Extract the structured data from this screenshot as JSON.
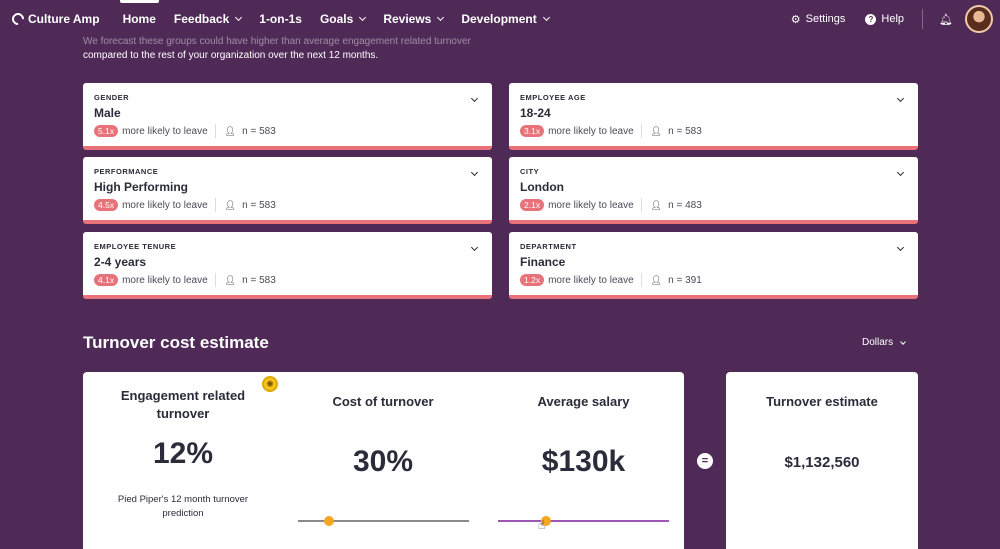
{
  "nav": {
    "brand": "Culture Amp",
    "items": [
      {
        "label": "Home",
        "active": true,
        "dropdown": false
      },
      {
        "label": "Feedback",
        "active": false,
        "dropdown": true
      },
      {
        "label": "1-on-1s",
        "active": false,
        "dropdown": false
      },
      {
        "label": "Goals",
        "active": false,
        "dropdown": true
      },
      {
        "label": "Reviews",
        "active": false,
        "dropdown": true
      },
      {
        "label": "Development",
        "active": false,
        "dropdown": true
      }
    ],
    "settings_label": "Settings",
    "help_label": "Help",
    "icons": {
      "settings": "gear-icon",
      "help": "help-icon",
      "notifications": "bell-icon"
    }
  },
  "intro": {
    "line1": "We forecast these groups could have higher than average engagement related turnover",
    "line2": "compared to the rest of your organization over the next 12 months."
  },
  "segments": [
    {
      "category": "GENDER",
      "value": "Male",
      "multiplier": "5.1x",
      "likely_text": "more likely to leave",
      "n": "n = 583"
    },
    {
      "category": "EMPLOYEE AGE",
      "value": "18-24",
      "multiplier": "3.1x",
      "likely_text": "more likely to leave",
      "n": "n = 583"
    },
    {
      "category": "PERFORMANCE",
      "value": "High Performing",
      "multiplier": "4.5x",
      "likely_text": "more likely to leave",
      "n": "n = 583"
    },
    {
      "category": "CITY",
      "value": "London",
      "multiplier": "2.1x",
      "likely_text": "more likely to leave",
      "n": "n = 483"
    },
    {
      "category": "EMPLOYEE TENURE",
      "value": "2-4 years",
      "multiplier": "4.1x",
      "likely_text": "more likely to leave",
      "n": "n = 583"
    },
    {
      "category": "DEPARTMENT",
      "value": "Finance",
      "multiplier": "1.2x",
      "likely_text": "more likely to leave",
      "n": "n = 391"
    }
  ],
  "turnover": {
    "section_title": "Turnover cost estimate",
    "currency_label": "Dollars",
    "engagement": {
      "title_line1": "Engagement related",
      "title_line2": "turnover",
      "value": "12%",
      "footnote_line1": "Pied Piper's 12 month turnover",
      "footnote_line2": "prediction"
    },
    "cost": {
      "title": "Cost of turnover",
      "value": "30%",
      "slider_fraction": 0.18
    },
    "salary": {
      "title": "Average salary",
      "value": "$130k",
      "slider_fraction": 0.28
    },
    "estimate": {
      "title": "Turnover estimate",
      "value": "$1,132,560"
    }
  },
  "colors": {
    "background": "#4f2a57",
    "badge": "#e8727a",
    "slider_thumb": "#f5a623",
    "salary_track": "#9b59b6"
  }
}
